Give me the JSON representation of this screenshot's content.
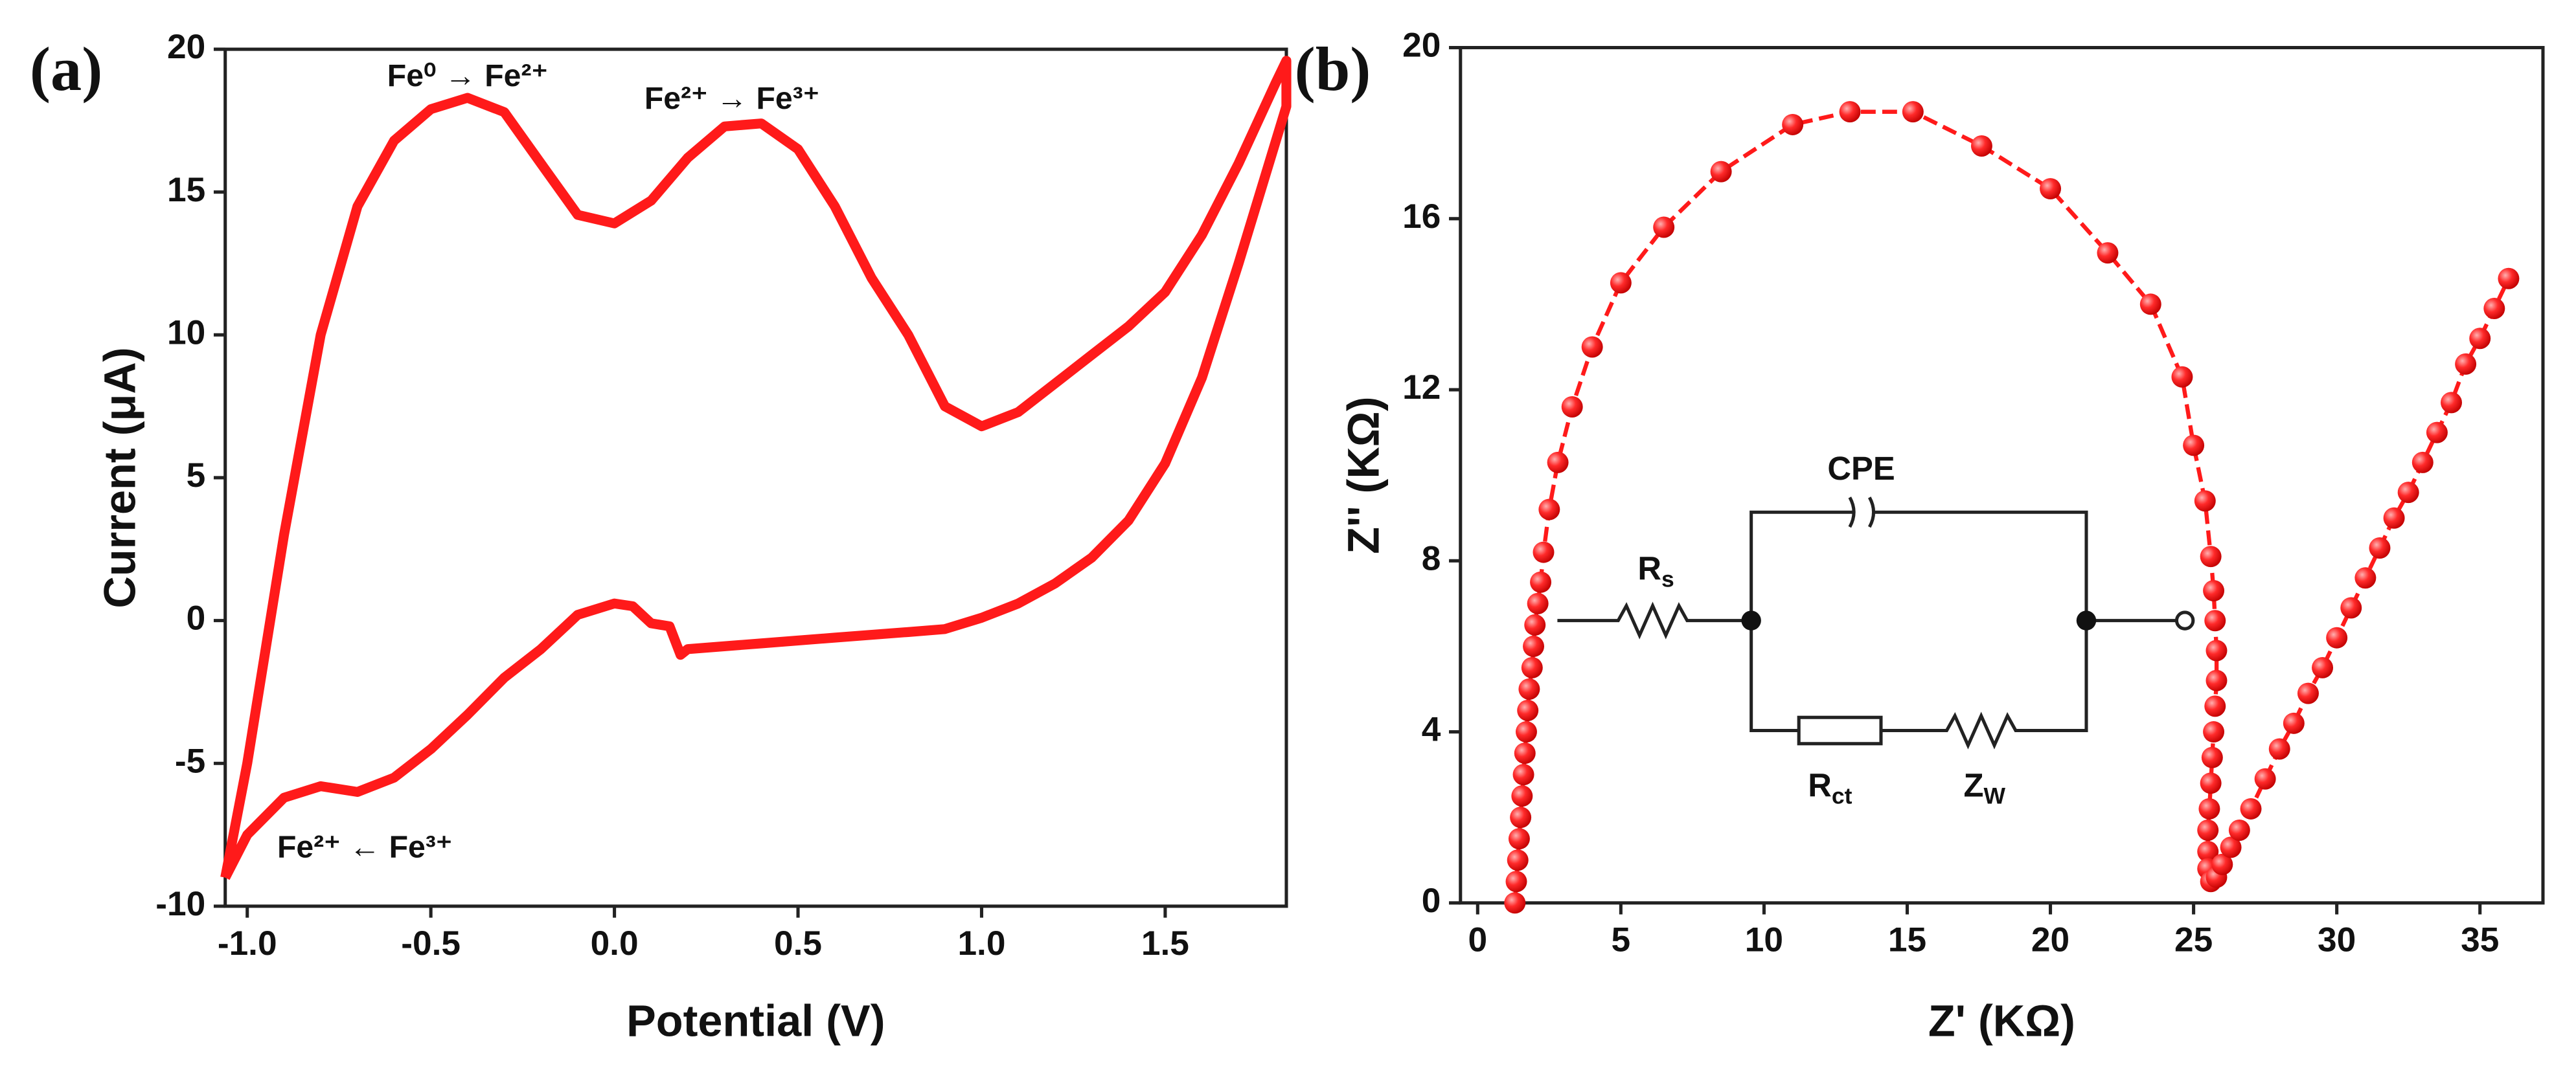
{
  "chart_data": [
    {
      "type": "line",
      "panel": "(a)",
      "xlabel": "Potential (V)",
      "ylabel": "Current (μA)",
      "color": "#ff1a1a",
      "xlim": [
        -1.06,
        1.83
      ],
      "ylim": [
        -10,
        20
      ],
      "xticks": [
        {
          "value": -1,
          "label": "-1.0"
        },
        {
          "value": -0.5,
          "label": "-0.5"
        },
        {
          "value": 0,
          "label": "0.0"
        },
        {
          "value": 0.5,
          "label": "0.5"
        },
        {
          "value": 1,
          "label": "1.0"
        },
        {
          "value": 1.5,
          "label": "1.5"
        }
      ],
      "yticks": [
        -10,
        -5,
        0,
        5,
        10,
        15,
        20
      ],
      "annotations": [
        {
          "text": "Fe⁰ → Fe²⁺",
          "x": -0.4,
          "y": 19.0
        },
        {
          "text": "Fe²⁺ → Fe³⁺",
          "x": 0.32,
          "y": 18.2
        },
        {
          "text": "Fe²⁺ ← Fe³⁺",
          "x": -0.68,
          "y": -8.0
        }
      ],
      "series": [
        {
          "name": null,
          "x": [
            -1.06,
            -1.0,
            -0.9,
            -0.8,
            -0.7,
            -0.6,
            -0.5,
            -0.4,
            -0.3,
            -0.2,
            -0.1,
            0,
            0.1,
            0.2,
            0.3,
            0.4,
            0.5,
            0.6,
            0.7,
            0.8,
            0.9,
            1.0,
            1.1,
            1.2,
            1.3,
            1.4,
            1.5,
            1.6,
            1.7,
            1.8,
            1.83,
            1.83,
            1.7,
            1.6,
            1.5,
            1.4,
            1.3,
            1.2,
            1.1,
            1.0,
            0.9,
            0.8,
            0.6,
            0.4,
            0.2,
            0.18,
            0.15,
            0.1,
            0.05,
            0,
            -0.1,
            -0.2,
            -0.3,
            -0.4,
            -0.5,
            -0.6,
            -0.7,
            -0.8,
            -0.9,
            -1.0,
            -1.06
          ],
          "values": [
            -9,
            -5,
            3,
            10,
            14.5,
            16.8,
            17.9,
            18.3,
            17.8,
            16,
            14.2,
            13.9,
            14.7,
            16.2,
            17.3,
            17.4,
            16.5,
            14.5,
            12,
            10,
            7.5,
            6.8,
            7.3,
            8.3,
            9.3,
            10.3,
            11.5,
            13.5,
            16,
            18.8,
            19.6,
            18,
            12.5,
            8.5,
            5.5,
            3.5,
            2.2,
            1.3,
            0.6,
            0.1,
            -0.3,
            -0.4,
            -0.6,
            -0.8,
            -1.0,
            -1.2,
            -0.2,
            -0.1,
            0.5,
            0.6,
            0.2,
            -1,
            -2,
            -3.3,
            -4.5,
            -5.5,
            -6,
            -5.8,
            -6.2,
            -7.5,
            -9
          ]
        }
      ]
    },
    {
      "type": "scatter",
      "panel": "(b)",
      "xlabel": "Z' (KΩ)",
      "ylabel": "Z'' (KΩ)",
      "color": "#ff1a1a",
      "xlim": [
        -0.6,
        37.2
      ],
      "ylim": [
        0,
        20
      ],
      "xticks": [
        0,
        5,
        10,
        15,
        20,
        25,
        30,
        35
      ],
      "yticks": [
        0,
        4,
        8,
        12,
        16,
        20
      ],
      "circuit": [
        {
          "text": "CPE"
        },
        {
          "text": "R",
          "sub": "s"
        },
        {
          "text": "R",
          "sub": "ct"
        },
        {
          "text": "Z",
          "sub": "W"
        }
      ],
      "series": [
        {
          "name": null,
          "x": [
            1.3,
            1.35,
            1.4,
            1.45,
            1.5,
            1.55,
            1.6,
            1.65,
            1.7,
            1.75,
            1.8,
            1.9,
            1.95,
            2.0,
            2.1,
            2.2,
            2.3,
            2.5,
            2.8,
            3.3,
            4.0,
            5,
            6.5,
            8.5,
            11,
            13,
            15.2,
            17.6,
            20,
            22,
            23.5,
            24.6,
            25,
            25.4,
            25.6,
            25.7,
            25.75,
            25.8,
            25.8,
            25.75,
            25.7,
            25.65,
            25.6,
            25.55,
            25.5,
            25.5,
            25.5,
            25.6,
            25.8,
            26,
            26.3,
            26.6,
            27,
            27.5,
            28,
            28.5,
            29,
            29.5,
            30,
            30.5,
            31,
            31.5,
            32,
            32.5,
            33,
            33.5,
            34,
            34.5,
            35,
            35.5,
            36
          ],
          "values": [
            0,
            0.5,
            1,
            1.5,
            2,
            2.5,
            3,
            3.5,
            4,
            4.5,
            5,
            5.5,
            6,
            6.5,
            7,
            7.5,
            8.2,
            9.2,
            10.3,
            11.6,
            13,
            14.5,
            15.8,
            17.1,
            18.2,
            18.5,
            18.5,
            17.7,
            16.7,
            15.2,
            14,
            12.3,
            10.7,
            9.4,
            8.1,
            7.3,
            6.6,
            5.9,
            5.2,
            4.6,
            4,
            3.4,
            2.8,
            2.2,
            1.7,
            1.2,
            0.8,
            0.5,
            0.6,
            0.9,
            1.3,
            1.7,
            2.2,
            2.9,
            3.6,
            4.2,
            4.9,
            5.5,
            6.2,
            6.9,
            7.6,
            8.3,
            9,
            9.6,
            10.3,
            11,
            11.7,
            12.6,
            13.2,
            13.9,
            14.6
          ]
        }
      ]
    }
  ]
}
